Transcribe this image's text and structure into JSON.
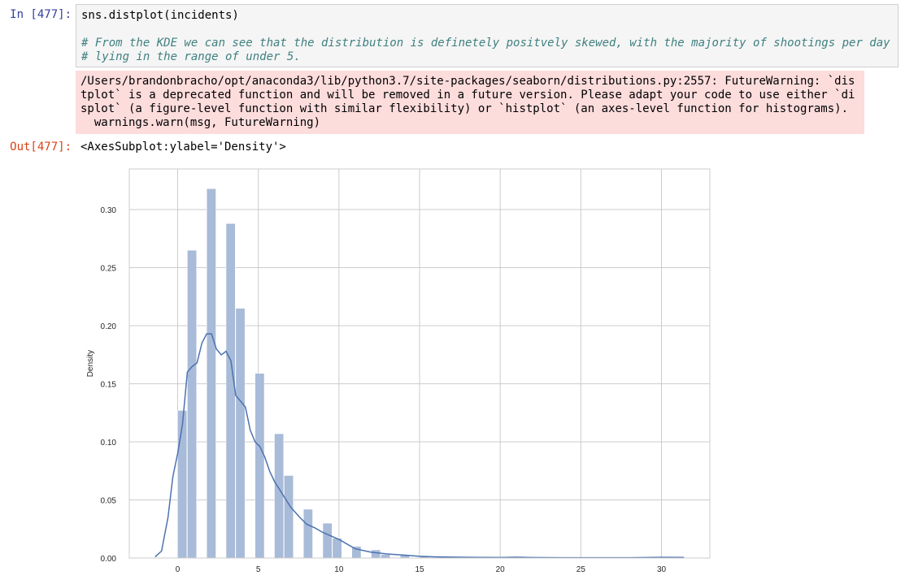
{
  "cell_in": {
    "prompt": "In [477]:",
    "lines": [
      "sns.distplot(incidents)",
      "",
      "# From the KDE we can see that the distribution is definetely positvely skewed, with the majority of shootings per day",
      "# lying in the range of under 5."
    ]
  },
  "stderr": {
    "lines": [
      "/Users/brandonbracho/opt/anaconda3/lib/python3.7/site-packages/seaborn/distributions.py:2557: FutureWarning: `dis",
      "tplot` is a deprecated function and will be removed in a future version. Please adapt your code to use either `di",
      "splot` (a figure-level function with similar flexibility) or `histplot` (an axes-level function for histograms).",
      "  warnings.warn(msg, FutureWarning)"
    ]
  },
  "cell_out": {
    "prompt": "Out[477]:",
    "text": "<AxesSubplot:ylabel='Density'>"
  },
  "chart_data": {
    "type": "bar",
    "ylabel": "Density",
    "xlabel": "",
    "xlim": [
      -3,
      33
    ],
    "ylim": [
      0,
      0.335
    ],
    "xticks": [
      0,
      5,
      10,
      15,
      20,
      25,
      30
    ],
    "yticks": [
      0.0,
      0.05,
      0.1,
      0.15,
      0.2,
      0.25,
      0.3
    ],
    "ytick_labels": [
      "0.00",
      "0.05",
      "0.10",
      "0.15",
      "0.20",
      "0.25",
      "0.30"
    ],
    "grid": true,
    "bar_color": "#a8bbd8",
    "kde_color": "#4c72b0",
    "histogram": {
      "bin_edges": [
        0,
        0.6,
        1.2,
        1.8,
        2.4,
        3.0,
        3.6,
        4.2,
        4.8,
        5.4,
        6.0,
        6.6,
        7.2,
        7.8,
        8.4,
        9.0,
        9.6,
        10.2,
        10.8,
        11.4,
        12.0,
        12.6,
        13.2,
        13.8,
        14.4,
        15.0,
        15.6,
        16.2,
        16.8,
        17.4,
        18.0,
        18.6,
        19.2,
        19.8,
        20.4,
        21.0,
        21.6,
        22.2,
        22.8,
        23.4,
        24.0,
        24.6,
        25.2,
        25.8,
        26.4,
        27.0,
        27.6,
        28.2,
        28.8,
        29.4,
        30.0
      ],
      "densities": [
        0.127,
        0.265,
        0.0,
        0.318,
        0.0,
        0.288,
        0.215,
        0.0,
        0.159,
        0.0,
        0.107,
        0.071,
        0.0,
        0.042,
        0.0,
        0.03,
        0.017,
        0.0,
        0.01,
        0.0,
        0.007,
        0.003,
        0.0,
        0.003,
        0.0,
        0.002,
        0.0,
        0.001,
        0.0,
        0.0,
        0.0,
        0.0,
        0.0,
        0.0,
        0.0,
        0.001,
        0.0,
        0.0,
        0.0,
        0.0,
        0.0,
        0.0,
        0.0,
        0.0,
        0.0,
        0.0,
        0.0,
        0.0,
        0.0,
        0.001
      ]
    },
    "kde": {
      "x": [
        -1.4,
        -1.0,
        -0.6,
        -0.3,
        0.0,
        0.3,
        0.6,
        0.9,
        1.2,
        1.5,
        1.8,
        2.1,
        2.4,
        2.7,
        3.0,
        3.3,
        3.6,
        3.9,
        4.2,
        4.5,
        4.8,
        5.1,
        5.4,
        5.7,
        6.0,
        6.5,
        7.0,
        7.5,
        8.0,
        8.5,
        9.0,
        9.5,
        10.0,
        10.5,
        11.0,
        12.0,
        13.0,
        14.0,
        15.0,
        16.0,
        17.0,
        18.0,
        20.0,
        21.0,
        22.0,
        24.0,
        26.0,
        28.0,
        30.0,
        31.4
      ],
      "y": [
        0.001,
        0.006,
        0.035,
        0.07,
        0.09,
        0.115,
        0.16,
        0.165,
        0.168,
        0.185,
        0.193,
        0.193,
        0.18,
        0.175,
        0.178,
        0.17,
        0.14,
        0.135,
        0.13,
        0.11,
        0.1,
        0.096,
        0.087,
        0.075,
        0.066,
        0.055,
        0.044,
        0.036,
        0.029,
        0.026,
        0.022,
        0.019,
        0.016,
        0.012,
        0.008,
        0.005,
        0.0035,
        0.0025,
        0.0015,
        0.001,
        0.0008,
        0.0006,
        0.0004,
        0.0007,
        0.0004,
        0.0003,
        0.0003,
        0.0003,
        0.0006,
        0.0005
      ]
    }
  }
}
